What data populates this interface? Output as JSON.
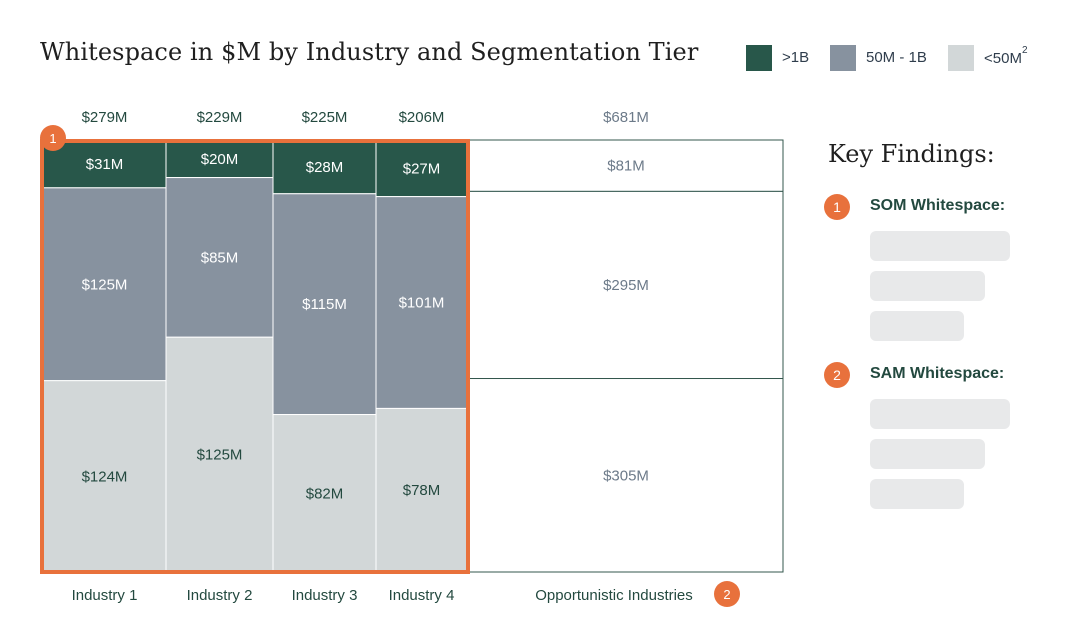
{
  "title": "Whitespace in $M by Industry and Segmentation Tier",
  "legend": [
    {
      "label": ">1B",
      "sup": "",
      "color": "#28574a"
    },
    {
      "label": "50M - 1B",
      "sup": "",
      "color": "#87929f"
    },
    {
      "label": "<50M",
      "sup": "2",
      "color": "#d2d7d8"
    }
  ],
  "chart_data": {
    "type": "marimekko",
    "categories": [
      "Industry 1",
      "Industry 2",
      "Industry 3",
      "Industry 4",
      "Opportunistic Industries"
    ],
    "totals": [
      "$279M",
      "$229M",
      "$225M",
      "$206M",
      "$681M"
    ],
    "series": [
      {
        "name": ">1B",
        "values": [
          31,
          20,
          28,
          27,
          81
        ],
        "labels": [
          "$31M",
          "$20M",
          "$28M",
          "$27M",
          "$81M"
        ]
      },
      {
        "name": "50M - 1B",
        "values": [
          125,
          85,
          115,
          101,
          295
        ],
        "labels": [
          "$125M",
          "$85M",
          "$115M",
          "$101M",
          "$295M"
        ]
      },
      {
        "name": "<50M",
        "values": [
          124,
          125,
          82,
          78,
          305
        ],
        "labels": [
          "$124M",
          "$125M",
          "$82M",
          "$78M",
          "$305M"
        ]
      }
    ],
    "highlight_badge": "1",
    "opportunistic_badge": "2"
  },
  "key_findings": {
    "title": "Key Findings:",
    "items": [
      {
        "badge": "1",
        "label": "SOM Whitespace:"
      },
      {
        "badge": "2",
        "label": "SAM Whitespace:"
      }
    ]
  },
  "colors": {
    "accent": "#e8713c",
    "dark": "#28574a",
    "mid": "#87929f",
    "light": "#d2d7d8",
    "label_dark": "#23493f",
    "label_muted": "#6c7a89"
  }
}
